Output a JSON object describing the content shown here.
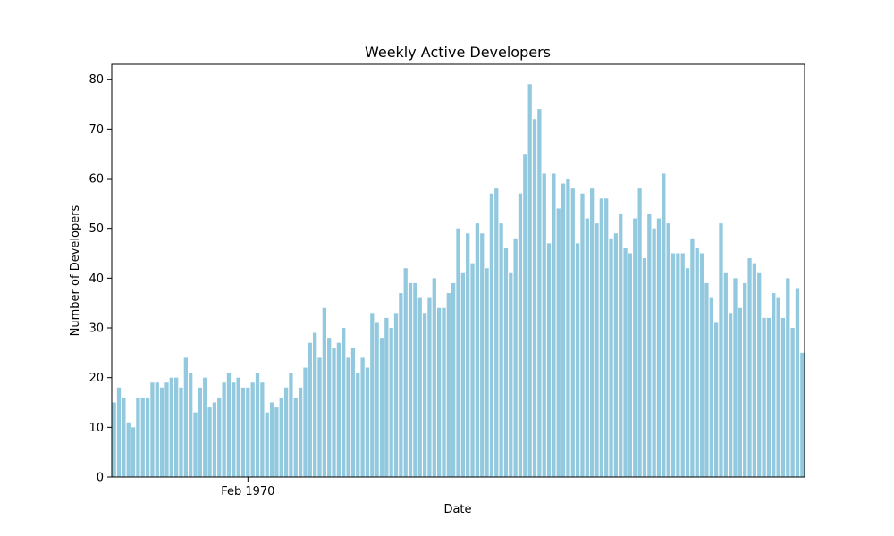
{
  "chart_data": {
    "type": "bar",
    "title": "Weekly Active Developers",
    "xlabel": "Date",
    "ylabel": "Number of Developers",
    "ylim": [
      0,
      83
    ],
    "y_ticks": [
      0,
      10,
      20,
      30,
      40,
      50,
      60,
      70,
      80
    ],
    "x_ticks": [
      {
        "label": "Feb 1970",
        "index": 28
      }
    ],
    "grid": false,
    "bar_color": "#92c9de",
    "values": [
      15,
      18,
      16,
      11,
      10,
      16,
      16,
      16,
      19,
      19,
      18,
      19,
      20,
      20,
      18,
      24,
      21,
      13,
      18,
      20,
      14,
      15,
      16,
      19,
      21,
      19,
      20,
      18,
      18,
      19,
      21,
      19,
      13,
      15,
      14,
      16,
      18,
      21,
      16,
      18,
      22,
      27,
      29,
      24,
      34,
      28,
      26,
      27,
      30,
      24,
      26,
      21,
      24,
      22,
      33,
      31,
      28,
      32,
      30,
      33,
      37,
      42,
      39,
      39,
      36,
      33,
      36,
      40,
      34,
      34,
      37,
      39,
      50,
      41,
      49,
      43,
      51,
      49,
      42,
      57,
      58,
      51,
      46,
      41,
      48,
      57,
      65,
      79,
      72,
      74,
      61,
      47,
      61,
      54,
      59,
      60,
      58,
      47,
      57,
      52,
      58,
      51,
      56,
      56,
      48,
      49,
      53,
      46,
      45,
      52,
      58,
      44,
      53,
      50,
      52,
      61,
      51,
      45,
      45,
      45,
      42,
      48,
      46,
      45,
      39,
      36,
      31,
      51,
      41,
      33,
      40,
      34,
      39,
      44,
      43,
      41,
      32,
      32,
      37,
      36,
      32,
      40,
      30,
      38,
      25
    ]
  }
}
